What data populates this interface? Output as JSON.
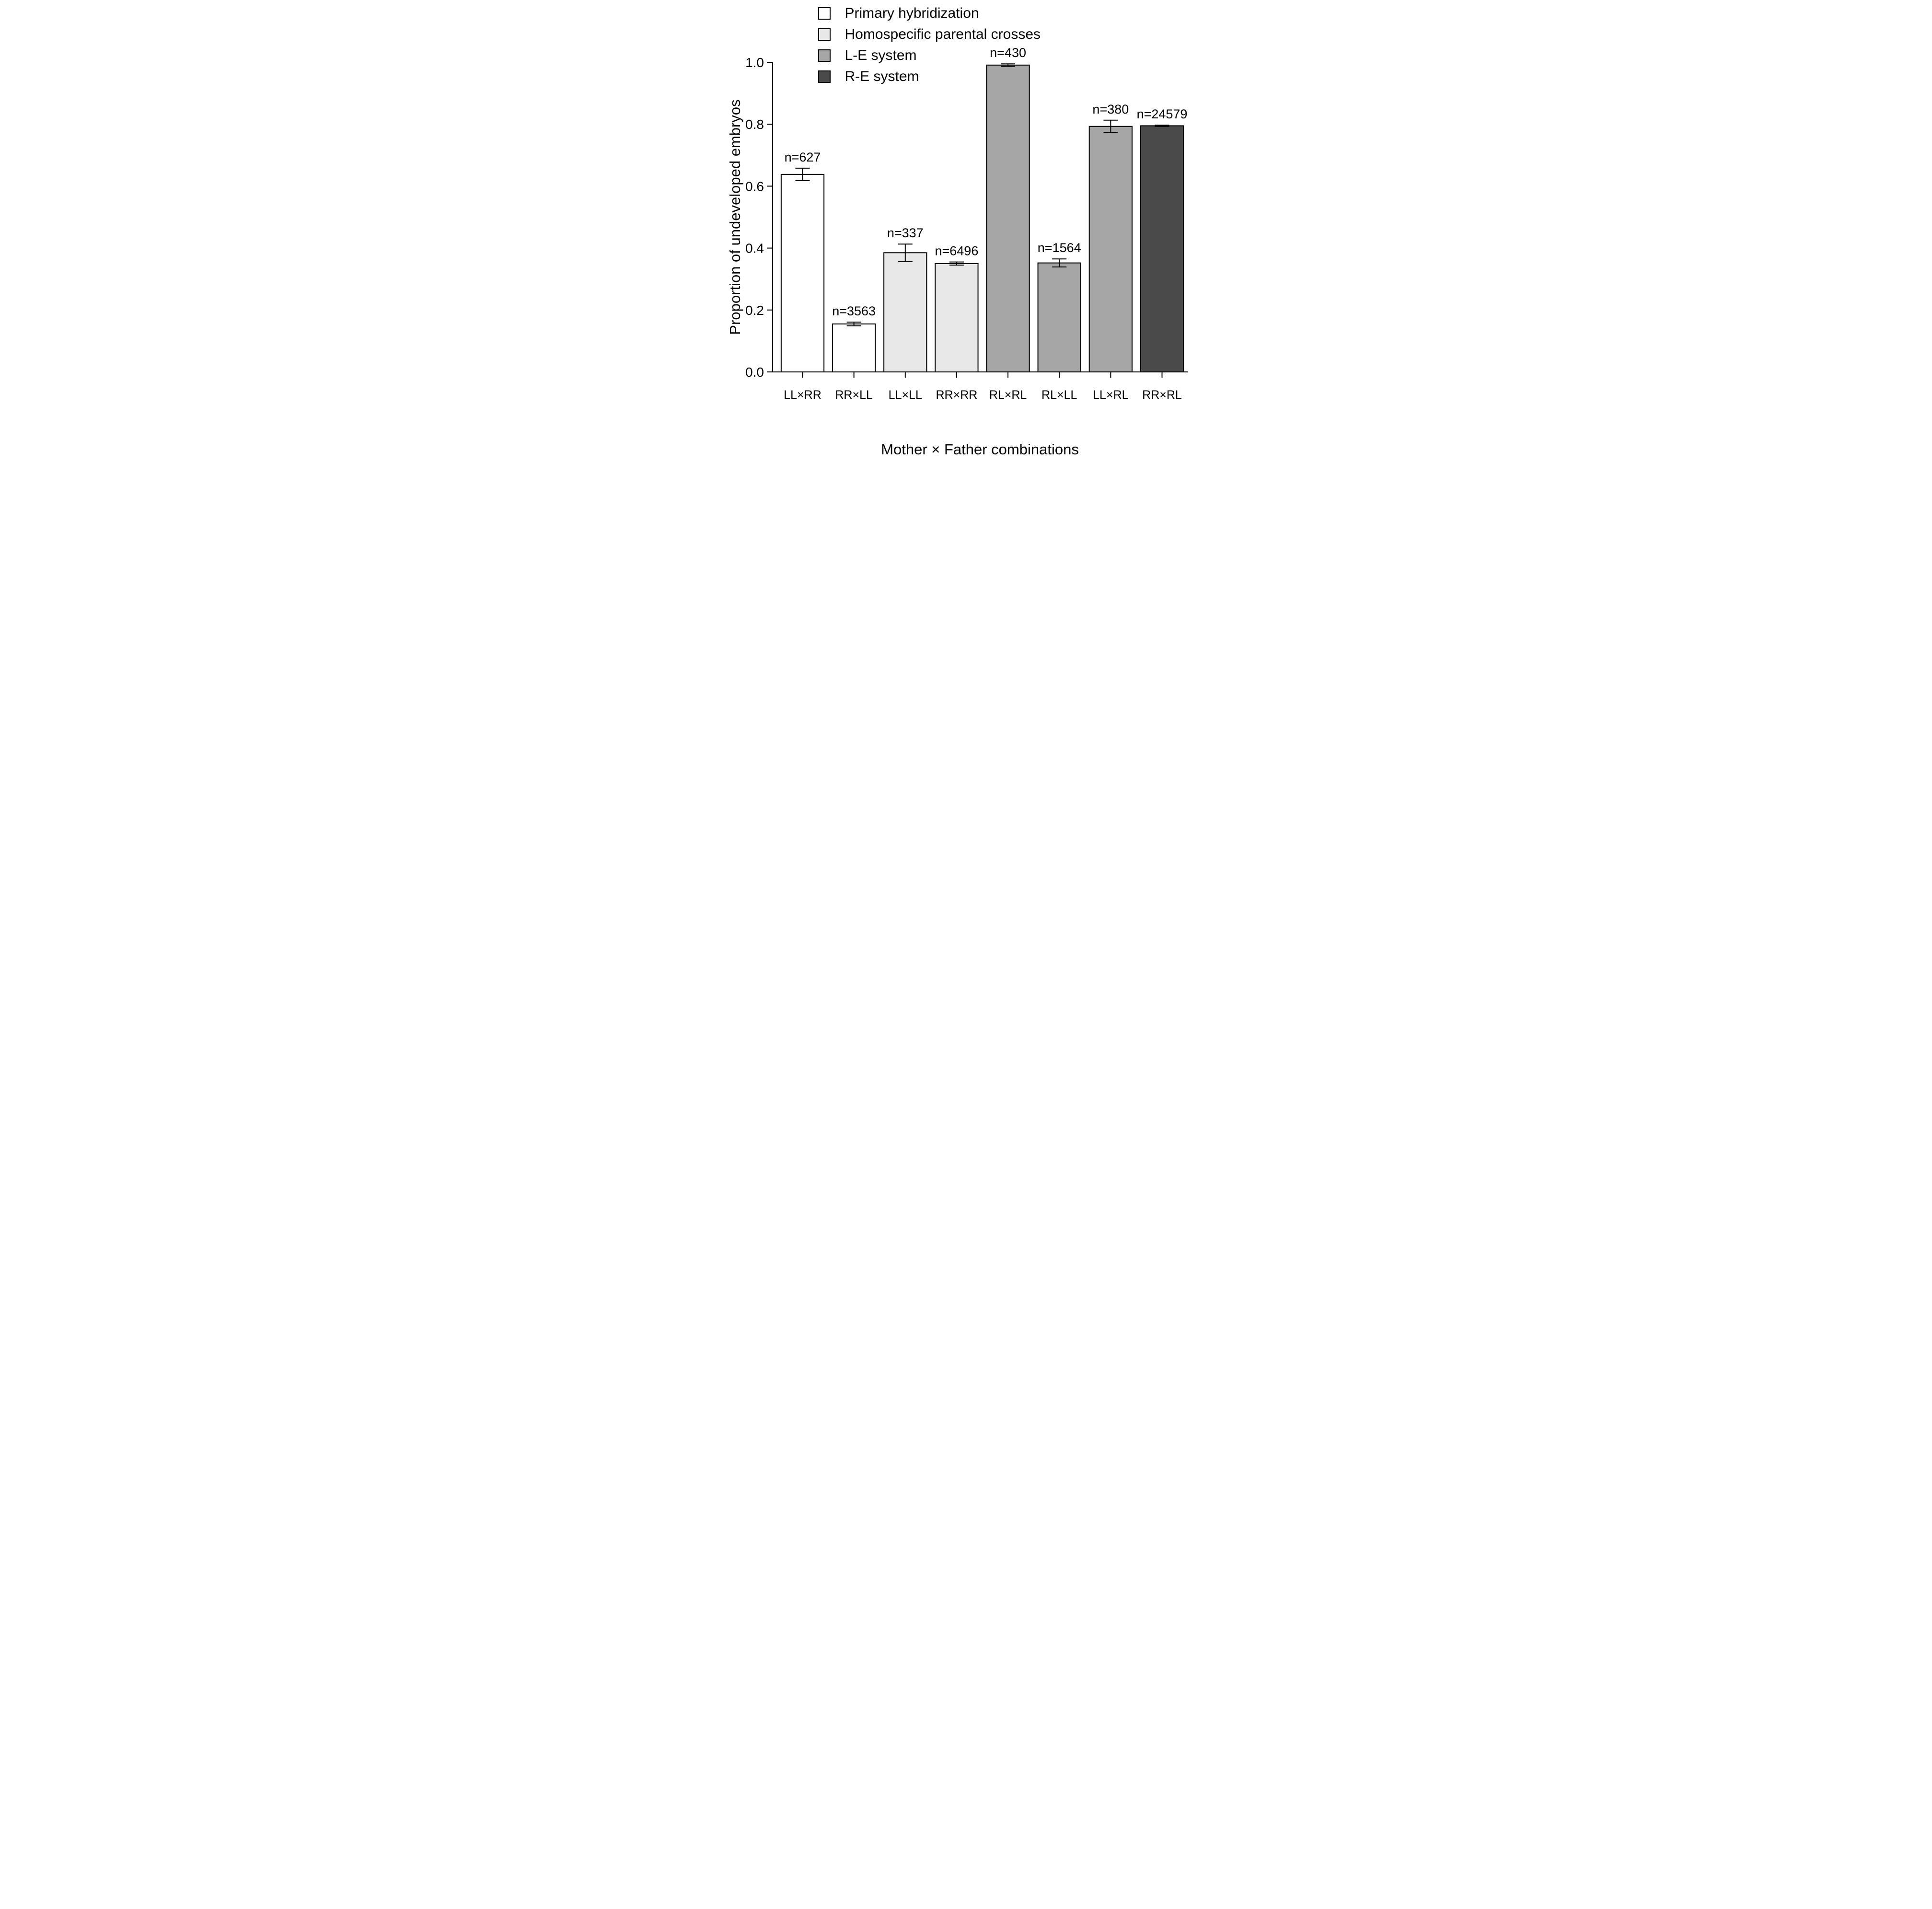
{
  "chart_data": {
    "type": "bar",
    "title": "",
    "xlabel": "Mother × Father combinations",
    "ylabel": "Proportion of undeveloped embryos",
    "ylim": [
      0.0,
      1.0
    ],
    "yticks": [
      0.0,
      0.2,
      0.4,
      0.6,
      0.8,
      1.0
    ],
    "grid": false,
    "legend_position": "top-left",
    "legend": [
      {
        "label": "Primary hybridization",
        "color": "#ffffff"
      },
      {
        "label": "Homospecific parental crosses",
        "color": "#e8e8e8"
      },
      {
        "label": "L-E system",
        "color": "#a6a6a6"
      },
      {
        "label": "R-E system",
        "color": "#4a4a4a"
      }
    ],
    "categories": [
      "LL×RR",
      "RR×LL",
      "LL×LL",
      "RR×RR",
      "RL×RL",
      "RL×LL",
      "LL×RL",
      "RR×RL"
    ],
    "bars": [
      {
        "category": "LL×RR",
        "group": "Primary hybridization",
        "value": 0.638,
        "error": 0.02,
        "n_label": "n=627"
      },
      {
        "category": "RR×LL",
        "group": "Primary hybridization",
        "value": 0.155,
        "error": 0.006,
        "n_label": "n=3563"
      },
      {
        "category": "LL×LL",
        "group": "Homospecific parental crosses",
        "value": 0.385,
        "error": 0.028,
        "n_label": "n=337"
      },
      {
        "category": "RR×RR",
        "group": "Homospecific parental crosses",
        "value": 0.35,
        "error": 0.005,
        "n_label": "n=6496"
      },
      {
        "category": "RL×RL",
        "group": "L-E system",
        "value": 0.991,
        "error": 0.004,
        "n_label": "n=430"
      },
      {
        "category": "RL×LL",
        "group": "L-E system",
        "value": 0.352,
        "error": 0.013,
        "n_label": "n=1564"
      },
      {
        "category": "LL×RL",
        "group": "L-E system",
        "value": 0.793,
        "error": 0.02,
        "n_label": "n=380"
      },
      {
        "category": "RR×RL",
        "group": "R-E system",
        "value": 0.795,
        "error": 0.002,
        "n_label": "n=24579"
      }
    ],
    "group_colors": {
      "Primary hybridization": "#ffffff",
      "Homospecific parental crosses": "#e8e8e8",
      "L-E system": "#a6a6a6",
      "R-E system": "#4a4a4a"
    }
  }
}
